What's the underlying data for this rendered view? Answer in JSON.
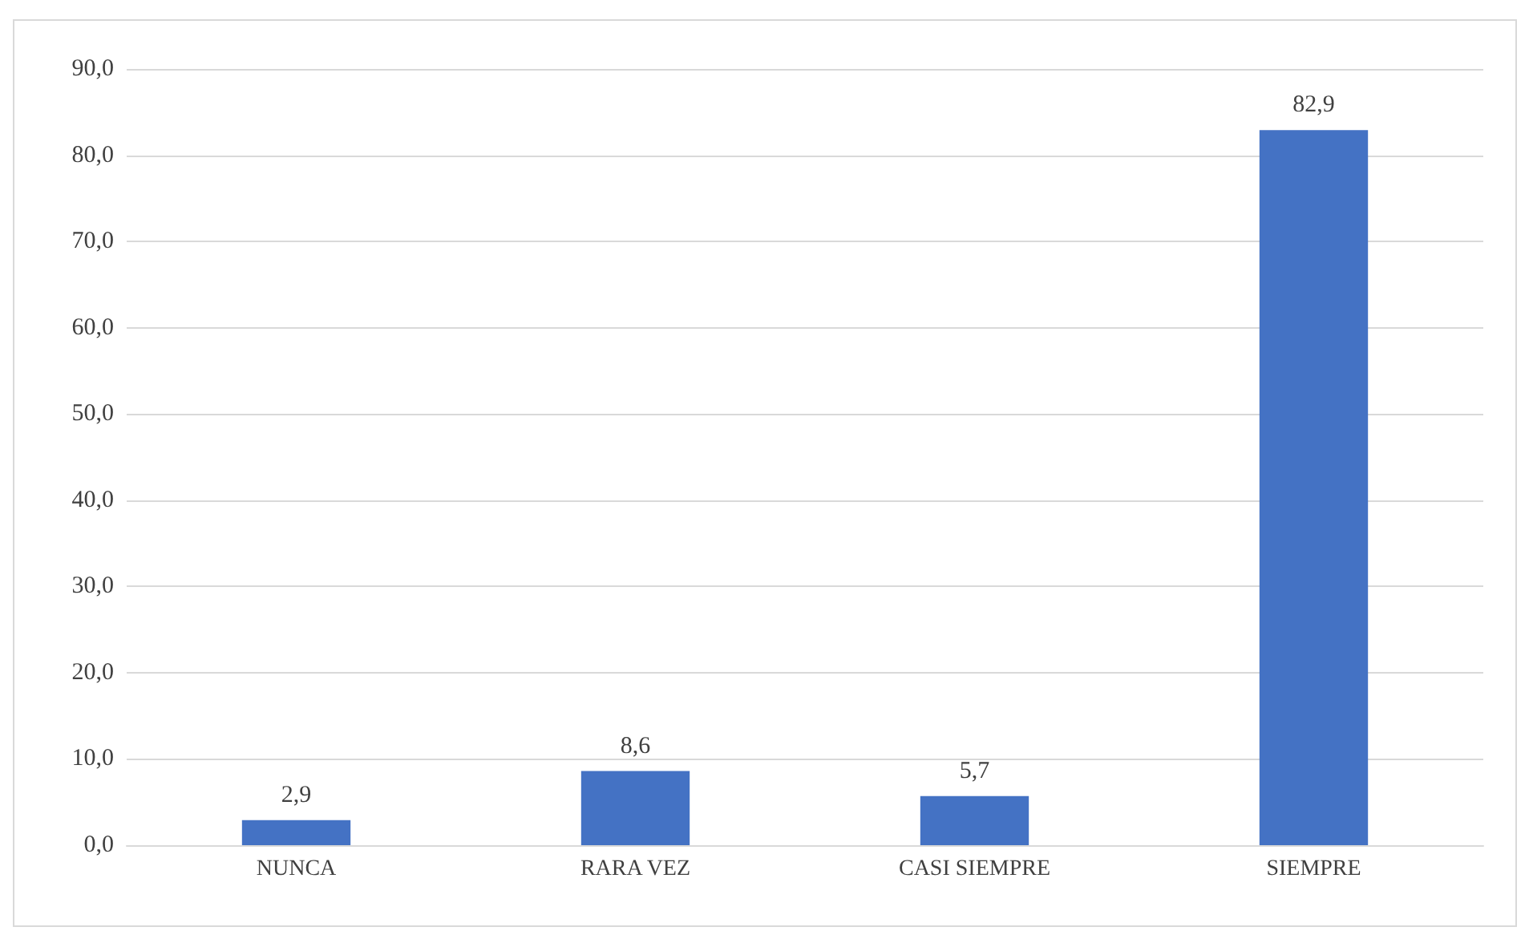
{
  "chart_data": {
    "type": "bar",
    "categories": [
      "NUNCA",
      "RARA VEZ",
      "CASI SIEMPRE",
      "SIEMPRE"
    ],
    "values": [
      2.9,
      8.6,
      5.7,
      82.9
    ],
    "color": "#4472c4",
    "ylim": [
      0,
      90
    ],
    "yticks": [
      {
        "value": 0,
        "label": "0,0"
      },
      {
        "value": 10,
        "label": "10,0"
      },
      {
        "value": 20,
        "label": "20,0"
      },
      {
        "value": 30,
        "label": "30,0"
      },
      {
        "value": 40,
        "label": "40,0"
      },
      {
        "value": 50,
        "label": "50,0"
      },
      {
        "value": 60,
        "label": "60,0"
      },
      {
        "value": 70,
        "label": "70,0"
      },
      {
        "value": 80,
        "label": "80,0"
      },
      {
        "value": 90,
        "label": "90,0"
      }
    ],
    "value_labels": [
      "2,9",
      "8,6",
      "5,7",
      "82,9"
    ],
    "grid": "y"
  }
}
